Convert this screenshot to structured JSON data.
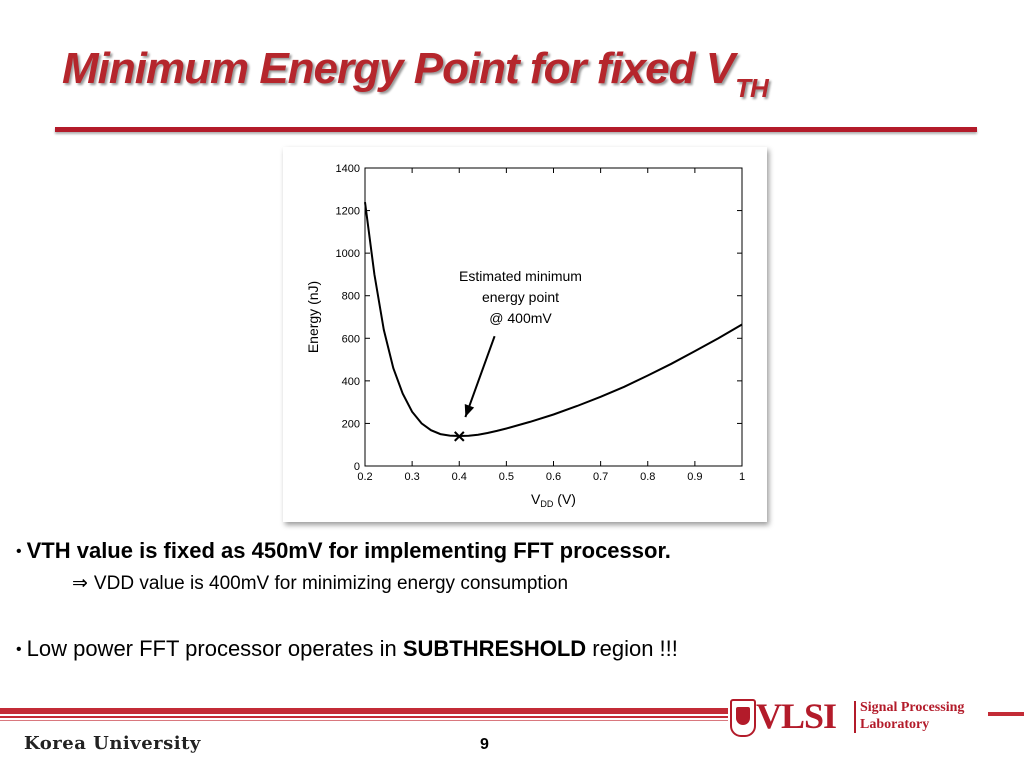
{
  "slide": {
    "title": "Minimum Energy Point for fixed V",
    "title_subscript": "TH",
    "page_number": "9",
    "footer_university": "Korea University",
    "logo": {
      "name": "VLSI",
      "line1": "Signal Processing",
      "line2": "Laboratory"
    },
    "colors": {
      "accent": "#b31b2a",
      "text": "#000000"
    }
  },
  "bullets": {
    "bullet1": "VTH value is fixed as 450mV for implementing FFT processor.",
    "arrow_symbol": "⇒",
    "sub1": "VDD value is 400mV for minimizing energy consumption",
    "bullet2_prefix": "Low power  FFT processor operates in ",
    "bullet2_bold": "SUBTHRESHOLD",
    "bullet2_suffix": " region !!!"
  },
  "chart_data": {
    "type": "line",
    "xlabel": "V",
    "xlabel_sub": "DD",
    "xlabel_unit": " (V)",
    "ylabel": "Energy (nJ)",
    "xlim": [
      0.2,
      1.0
    ],
    "ylim": [
      0,
      1400
    ],
    "xticks": [
      0.2,
      0.3,
      0.4,
      0.5,
      0.6,
      0.7,
      0.8,
      0.9,
      1
    ],
    "yticks": [
      0,
      200,
      400,
      600,
      800,
      1000,
      1200,
      1400
    ],
    "grid": false,
    "series": [
      {
        "x": [
          0.2,
          0.22,
          0.24,
          0.26,
          0.28,
          0.3,
          0.32,
          0.34,
          0.36,
          0.38,
          0.4,
          0.42,
          0.44,
          0.46,
          0.48,
          0.5,
          0.55,
          0.6,
          0.65,
          0.7,
          0.75,
          0.8,
          0.85,
          0.9,
          0.95,
          1.0
        ],
        "y": [
          1240,
          900,
          640,
          460,
          340,
          255,
          200,
          168,
          150,
          143,
          141,
          142,
          147,
          155,
          165,
          176,
          207,
          242,
          282,
          325,
          372,
          425,
          480,
          540,
          600,
          665
        ]
      }
    ],
    "marker": {
      "x": 0.4,
      "y": 141,
      "symbol": "×"
    },
    "annotation": {
      "lines": [
        "Estimated minimum",
        "energy point",
        "@ 400mV"
      ],
      "text_x": 0.53,
      "text_y": 870,
      "arrow_from": [
        0.475,
        610
      ],
      "arrow_to": [
        0.413,
        230
      ]
    }
  }
}
